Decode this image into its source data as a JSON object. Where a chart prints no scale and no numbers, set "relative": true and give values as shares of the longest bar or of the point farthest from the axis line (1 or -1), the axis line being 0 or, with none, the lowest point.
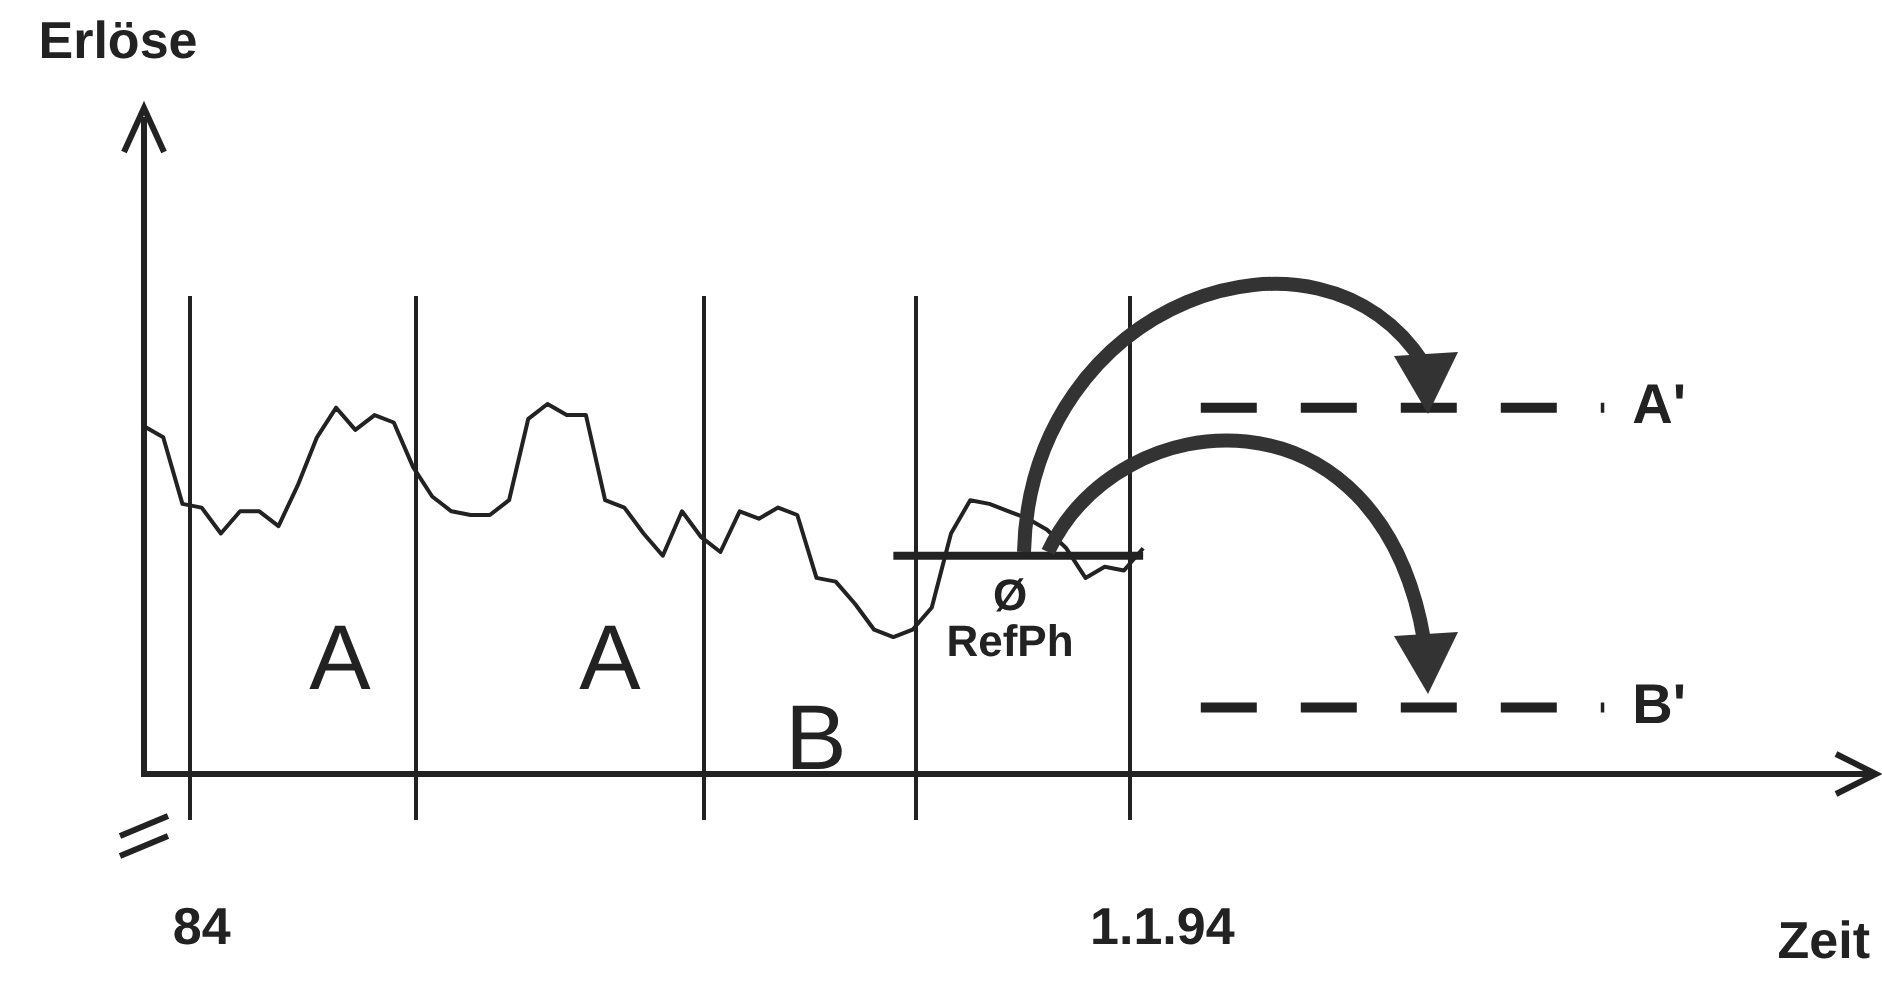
{
  "chart_data": {
    "type": "line",
    "relative": true,
    "xlabel": "Zeit",
    "tick_labels": "x",
    "grid": false,
    "legend": false,
    "marker": "none",
    "categories": [
      null,
      null,
      null,
      "84",
      null,
      null,
      null,
      null,
      null,
      null,
      null,
      null,
      null,
      null,
      null,
      null,
      null,
      null,
      null,
      null,
      null,
      null,
      null,
      null,
      null,
      null,
      null,
      null,
      null,
      null,
      null,
      null,
      null,
      null,
      null,
      null,
      null,
      null,
      null,
      null,
      null,
      null,
      null,
      null,
      null,
      null,
      null,
      null,
      null,
      null,
      null,
      null,
      null,
      "1.1.94",
      null,
      null,
      null,
      null,
      null,
      null,
      null,
      null,
      null,
      null,
      null,
      null,
      null,
      null,
      null,
      null,
      null,
      null,
      null,
      null,
      null,
      null,
      null,
      null,
      null,
      null,
      null,
      null,
      null,
      null,
      null
    ],
    "series": [
      {
        "color": "#222222",
        "values": [
          0.94,
          0.91,
          0.73,
          0.72,
          0.65,
          0.71,
          0.71,
          0.67,
          0.78,
          0.91,
          0.99,
          0.93,
          0.97,
          0.95,
          0.83,
          0.75,
          0.71,
          0.7,
          0.7,
          0.74,
          0.96,
          1,
          0.97,
          0.97,
          0.74,
          0.72,
          0.65,
          0.59,
          0.71,
          0.64,
          0.6,
          0.71,
          0.69,
          0.72,
          0.7,
          0.53,
          0.52,
          0.46,
          0.39,
          0.37,
          0.39,
          0.45,
          0.65,
          0.74,
          0.73,
          0.71,
          0.69,
          0.66,
          0.61,
          0.53,
          0.56,
          0.55,
          0.61,
          null,
          null,
          null,
          null,
          null,
          null,
          null,
          null,
          null,
          null,
          null,
          null,
          null,
          null,
          null,
          null,
          null,
          null,
          null,
          null,
          null,
          null,
          null,
          null,
          null,
          null,
          null,
          null,
          null,
          null,
          null,
          null
        ]
      },
      {
        "color": "#222222",
        "values": [
          null,
          null,
          null,
          null,
          null,
          null,
          null,
          null,
          null,
          null,
          null,
          null,
          null,
          null,
          null,
          null,
          null,
          null,
          null,
          null,
          null,
          null,
          null,
          null,
          null,
          null,
          null,
          null,
          null,
          null,
          null,
          null,
          null,
          null,
          null,
          null,
          null,
          null,
          null,
          0.59,
          0.59,
          0.59,
          0.59,
          0.59,
          0.59,
          0.59,
          0.59,
          0.59,
          0.59,
          0.59,
          0.59,
          0.59,
          0.59,
          null,
          null,
          null,
          null,
          null,
          null,
          null,
          null,
          null,
          null,
          null,
          null,
          null,
          null,
          null,
          null,
          null,
          null,
          null,
          null,
          null,
          null,
          null,
          null,
          null,
          null,
          null,
          null,
          null,
          null,
          null,
          null
        ]
      },
      {
        "name": "A'",
        "color": "#222222",
        "line_style": "dashed",
        "values": [
          null,
          null,
          null,
          null,
          null,
          null,
          null,
          null,
          null,
          null,
          null,
          null,
          null,
          null,
          null,
          null,
          null,
          null,
          null,
          null,
          null,
          null,
          null,
          null,
          null,
          null,
          null,
          null,
          null,
          null,
          null,
          null,
          null,
          null,
          null,
          null,
          null,
          null,
          null,
          null,
          null,
          null,
          null,
          null,
          null,
          null,
          null,
          null,
          null,
          null,
          null,
          null,
          null,
          null,
          null,
          0.99,
          0.99,
          0.99,
          0.99,
          0.99,
          0.99,
          0.99,
          0.99,
          0.99,
          0.99,
          0.99,
          0.99,
          0.99,
          0.99,
          0.99,
          0.99,
          0.99,
          0.99,
          0.99,
          0.99,
          0.99,
          0.99,
          null,
          null,
          null,
          null,
          null,
          null,
          null,
          null
        ]
      },
      {
        "name": "B'",
        "color": "#222222",
        "line_style": "dashed",
        "values": [
          null,
          null,
          null,
          null,
          null,
          null,
          null,
          null,
          null,
          null,
          null,
          null,
          null,
          null,
          null,
          null,
          null,
          null,
          null,
          null,
          null,
          null,
          null,
          null,
          null,
          null,
          null,
          null,
          null,
          null,
          null,
          null,
          null,
          null,
          null,
          null,
          null,
          null,
          null,
          null,
          null,
          null,
          null,
          null,
          null,
          null,
          null,
          null,
          null,
          null,
          null,
          null,
          null,
          null,
          null,
          0.18,
          0.18,
          0.18,
          0.18,
          0.18,
          0.18,
          0.18,
          0.18,
          0.18,
          0.18,
          0.18,
          0.18,
          0.18,
          0.18,
          0.18,
          0.18,
          0.18,
          0.18,
          0.18,
          0.18,
          0.18,
          0.18,
          null,
          null,
          null,
          null,
          null,
          null,
          null,
          null
        ]
      }
    ],
    "annotations": [
      "A",
      "A",
      "B",
      "Ø",
      "RefPh",
      "Erlöse"
    ]
  }
}
